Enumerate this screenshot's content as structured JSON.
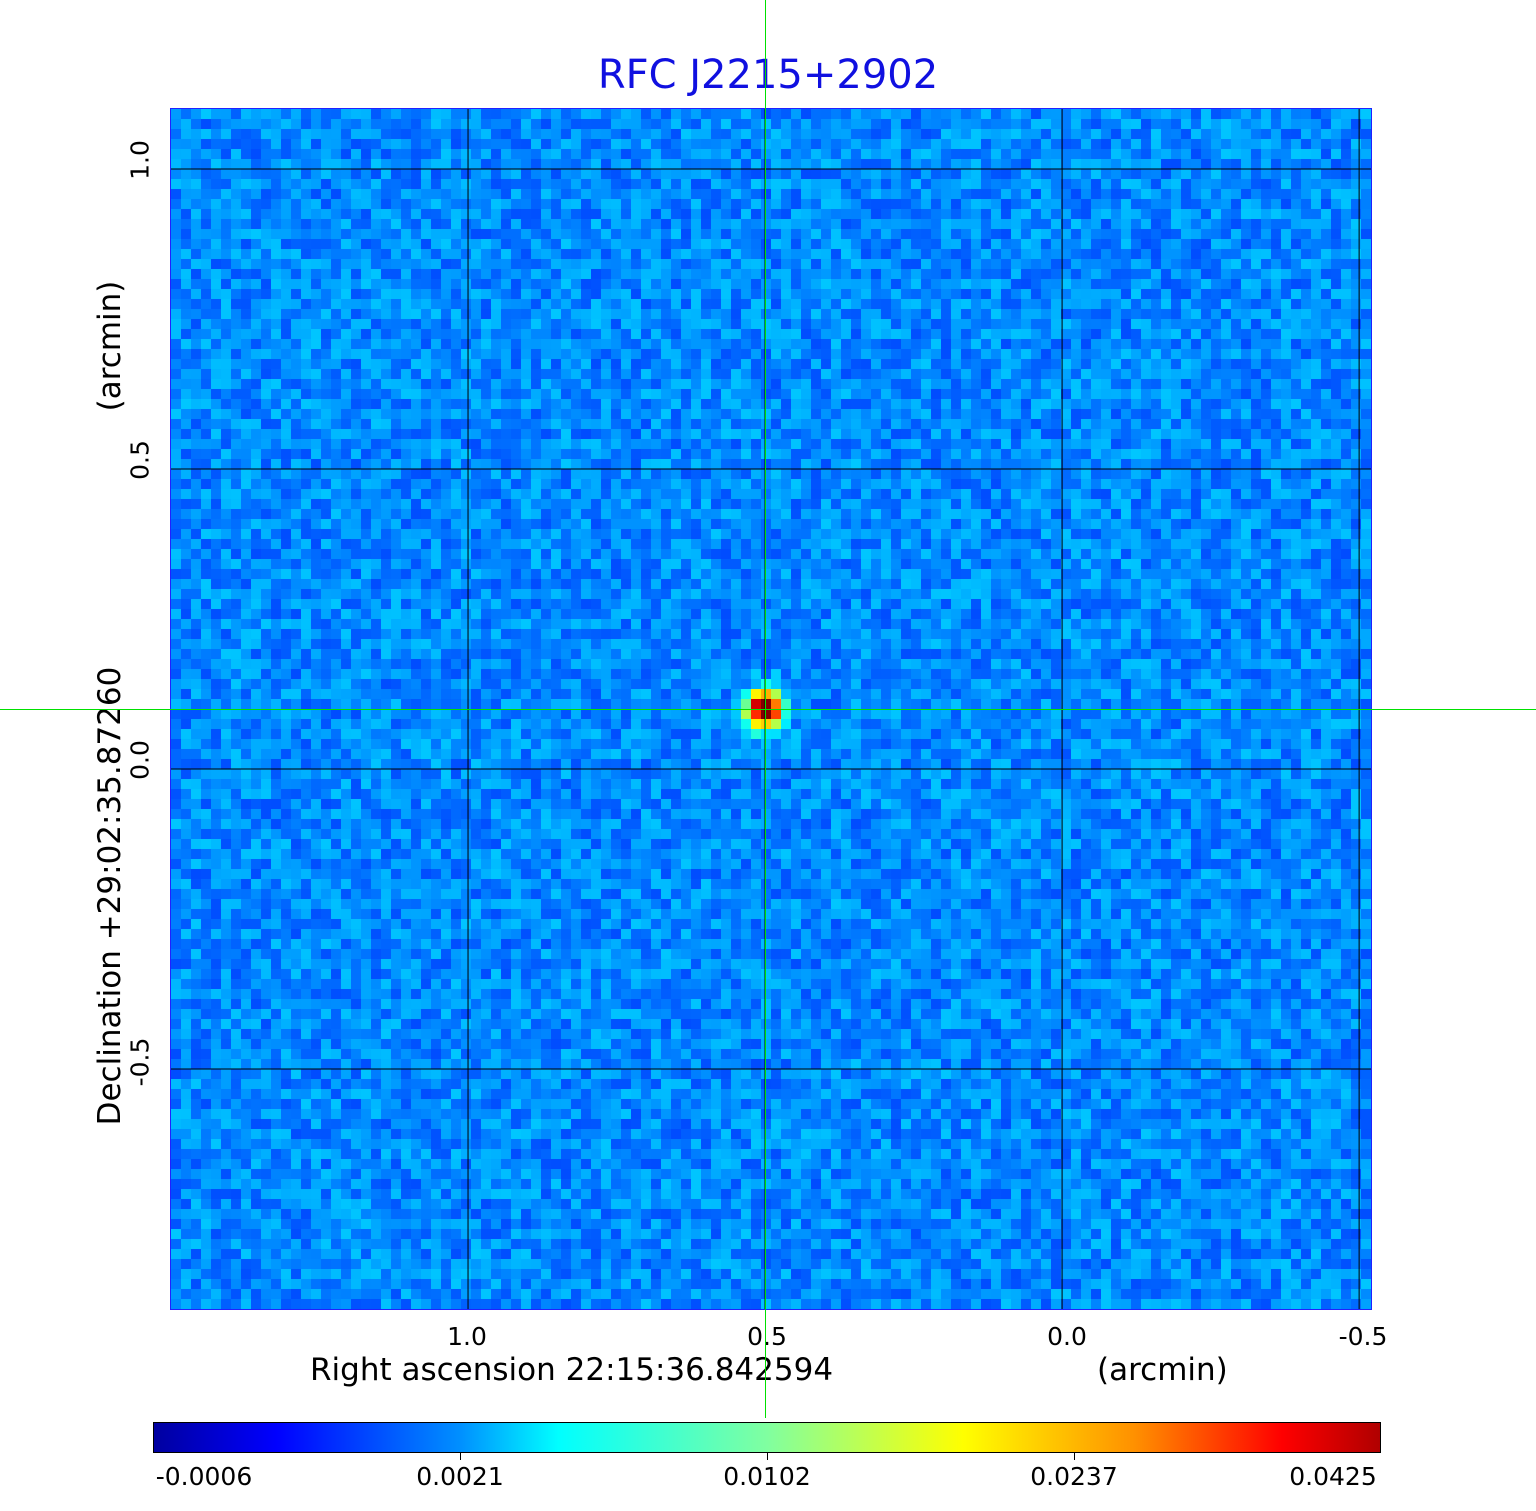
{
  "chart_data": {
    "type": "heatmap",
    "title": "RFC J2215+2902",
    "xlabel": "Right ascension  22:15:36.842594",
    "xunit": "(arcmin)",
    "ylabel": "Declination  +29:02:35.87260",
    "yunit": "(arcmin)",
    "xlim": [
      1.5,
      -0.52
    ],
    "ylim": [
      -0.9,
      1.1
    ],
    "xticks": [
      "1.0",
      "0.5",
      "0.0",
      "-0.5"
    ],
    "xtick_values": [
      1.0,
      0.5,
      0.0,
      -0.5
    ],
    "yticks": [
      "1.0",
      "0.5",
      "0.0",
      "-0.5"
    ],
    "ytick_values": [
      1.0,
      0.5,
      0.0,
      -0.5
    ],
    "grid": true,
    "colormap": "jet",
    "colorbar": {
      "ticks": [
        "-0.0006",
        "0.0021",
        "0.0102",
        "0.0237",
        "0.0425"
      ],
      "min": -0.0006,
      "max": 0.0425
    },
    "source_peak": {
      "x": 0.5,
      "y": 0.1,
      "value": 0.0425
    },
    "crosshair": {
      "x": 0.5,
      "y": 0.1,
      "color": "#00e000"
    },
    "grid_color": "#000000",
    "title_color": "#1010e0"
  }
}
